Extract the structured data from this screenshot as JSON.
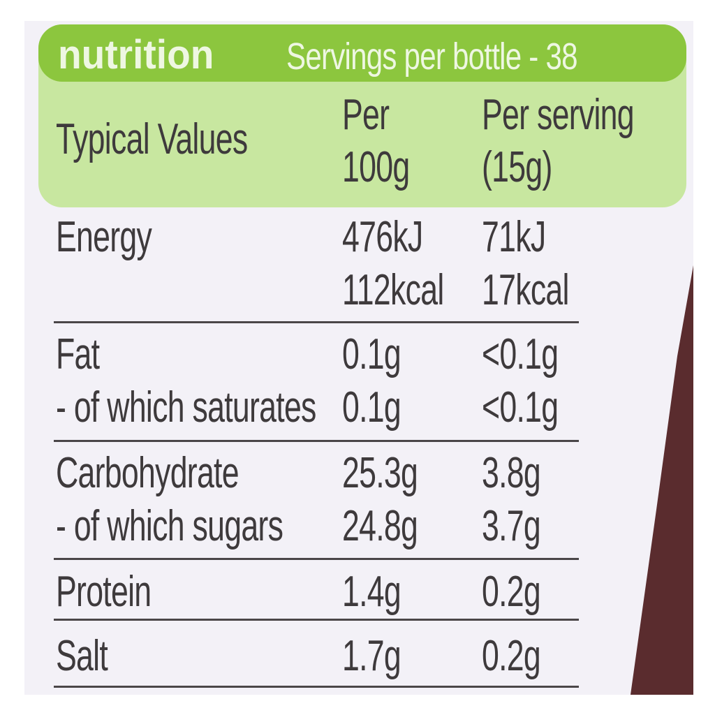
{
  "header": {
    "title": "nutrition",
    "subtitle": "Servings per bottle - 38"
  },
  "table": {
    "columns": [
      [
        "Typical Values"
      ],
      [
        "Per",
        "100g"
      ],
      [
        "Per serving",
        "(15g)"
      ]
    ],
    "rows": [
      [
        [
          "Energy"
        ],
        [
          "476kJ",
          "112kcal"
        ],
        [
          "71kJ",
          "17kcal"
        ]
      ],
      [
        [
          "Fat",
          "- of which saturates"
        ],
        [
          "0.1g",
          "0.1g"
        ],
        [
          "<0.1g",
          "<0.1g"
        ]
      ],
      [
        [
          "Carbohydrate",
          "- of which sugars"
        ],
        [
          "25.3g",
          "24.8g"
        ],
        [
          "3.8g",
          "3.7g"
        ]
      ],
      [
        [
          "Protein"
        ],
        [
          "1.4g"
        ],
        [
          "0.2g"
        ]
      ],
      [
        [
          "Salt"
        ],
        [
          "1.7g"
        ],
        [
          "0.2g"
        ]
      ]
    ]
  }
}
